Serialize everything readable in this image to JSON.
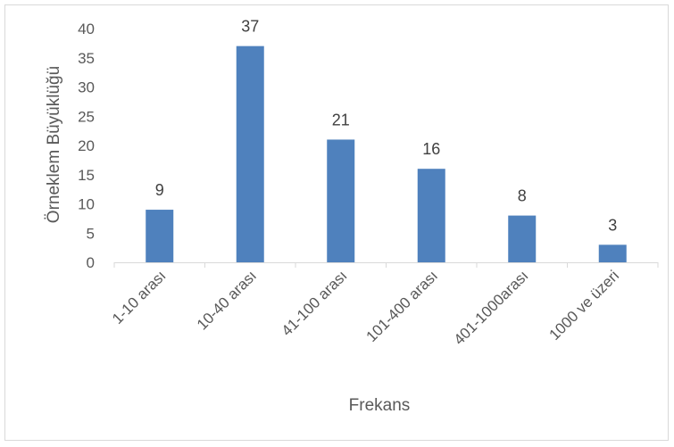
{
  "chart_data": {
    "type": "bar",
    "categories": [
      "1-10 arası",
      "10-40 arası",
      "41-100 arası",
      "101-400 arası",
      "401-1000arası",
      "1000 ve üzeri"
    ],
    "values": [
      9,
      37,
      21,
      16,
      8,
      3
    ],
    "title": "",
    "xlabel": "Frekans",
    "ylabel": "Örneklem Büyüklüğü",
    "ylim": [
      0,
      40
    ],
    "yticks": [
      0,
      5,
      10,
      15,
      20,
      25,
      30,
      35,
      40
    ],
    "bar_color": "#4f81bd",
    "grid": false,
    "data_labels": true
  }
}
